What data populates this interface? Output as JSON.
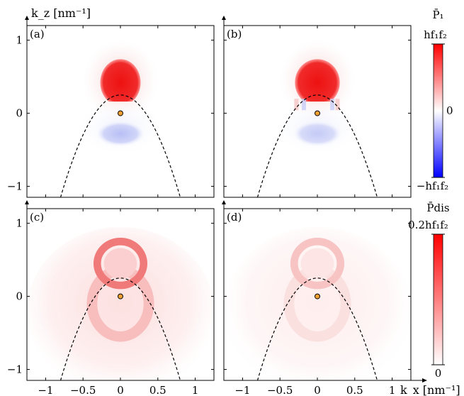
{
  "chart_data": {
    "type": "heatmap",
    "layout": "2x2",
    "xlabel": "k_x [nm⁻¹]",
    "ylabel": "k_z [nm⁻¹]",
    "xlim": [
      -1.25,
      1.25
    ],
    "ylim": [
      -1.15,
      1.2
    ],
    "x_ticks": [
      -1,
      -0.5,
      0,
      0.5,
      1
    ],
    "x_tick_labels": [
      "−1",
      "−0.5",
      "0",
      "0.5",
      "1"
    ],
    "y_ticks": [
      -1,
      0,
      1
    ],
    "y_tick_labels": [
      "−1",
      "0",
      "1"
    ],
    "panels": [
      {
        "label": "(a)",
        "quantity": "P1",
        "variant": "a"
      },
      {
        "label": "(b)",
        "quantity": "P1",
        "variant": "b"
      },
      {
        "label": "(c)",
        "quantity": "Pdis",
        "variant": "c"
      },
      {
        "label": "(d)",
        "quantity": "Pdis",
        "variant": "d"
      }
    ],
    "boundary_curve": {
      "style": "dashed",
      "apex": [
        0,
        0.25
      ],
      "x_at_bottom": [
        -0.8,
        0.8
      ],
      "y_bottom": -1.15
    },
    "center_point": {
      "x": 0,
      "y": 0,
      "color": "#f0a030"
    },
    "colorbars": [
      {
        "title": "P̄₁",
        "max_label": "hf₁f₂",
        "mid_label": "0",
        "min_label": "−hf₁f₂",
        "colormap": "bwr"
      },
      {
        "title": "P̄dis",
        "max_label": "0.2hf₁f₂",
        "min_label": "0",
        "colormap": "white-red"
      }
    ]
  }
}
